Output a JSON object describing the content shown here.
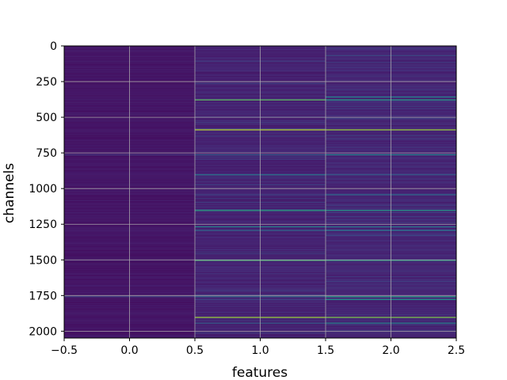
{
  "chart_data": {
    "type": "heatmap",
    "title": "",
    "xlabel": "features",
    "ylabel": "channels",
    "xlim": [
      -0.5,
      2.5
    ],
    "ylim": [
      2048,
      0
    ],
    "y_inverted": true,
    "grid": true,
    "colormap": "viridis",
    "xticks": [
      -0.5,
      0.0,
      0.5,
      1.0,
      1.5,
      2.0,
      2.5
    ],
    "xtick_labels": [
      "−0.5",
      "0.0",
      "0.5",
      "1.0",
      "1.5",
      "2.0",
      "2.5"
    ],
    "yticks": [
      0,
      250,
      500,
      750,
      1000,
      1250,
      1500,
      1750,
      2000
    ],
    "ytick_labels": [
      "0",
      "250",
      "500",
      "750",
      "1000",
      "1250",
      "1500",
      "1750",
      "2000"
    ],
    "columns": [
      0,
      1,
      2
    ],
    "n_channels": 2048,
    "column_base_level": [
      0.04,
      0.06,
      0.07
    ],
    "highlighted_channels": [
      {
        "channel": 375,
        "values": [
          0.04,
          0.75,
          0.55
        ]
      },
      {
        "channel": 355,
        "values": [
          0.04,
          0.1,
          0.45
        ]
      },
      {
        "channel": 585,
        "values": [
          0.04,
          0.9,
          0.85
        ]
      },
      {
        "channel": 760,
        "values": [
          0.15,
          0.3,
          0.45
        ]
      },
      {
        "channel": 900,
        "values": [
          0.04,
          0.4,
          0.3
        ]
      },
      {
        "channel": 1040,
        "values": [
          0.04,
          0.2,
          0.35
        ]
      },
      {
        "channel": 1150,
        "values": [
          0.04,
          0.6,
          0.55
        ]
      },
      {
        "channel": 1265,
        "values": [
          0.04,
          0.45,
          0.4
        ]
      },
      {
        "channel": 1290,
        "values": [
          0.04,
          0.35,
          0.4
        ]
      },
      {
        "channel": 1500,
        "values": [
          0.04,
          0.7,
          0.6
        ]
      },
      {
        "channel": 1755,
        "values": [
          0.2,
          0.35,
          0.55
        ]
      },
      {
        "channel": 1775,
        "values": [
          0.04,
          0.2,
          0.5
        ]
      },
      {
        "channel": 1900,
        "values": [
          0.04,
          0.85,
          0.8
        ]
      },
      {
        "channel": 1940,
        "values": [
          0.04,
          0.3,
          0.45
        ]
      }
    ],
    "colors": {
      "viridis": [
        "#440154",
        "#472c7a",
        "#3b528b",
        "#2c728e",
        "#21918c",
        "#28ae80",
        "#5ec962",
        "#addc30",
        "#fde725"
      ],
      "grid": "#b0b0b0",
      "axis": "#000000"
    }
  }
}
